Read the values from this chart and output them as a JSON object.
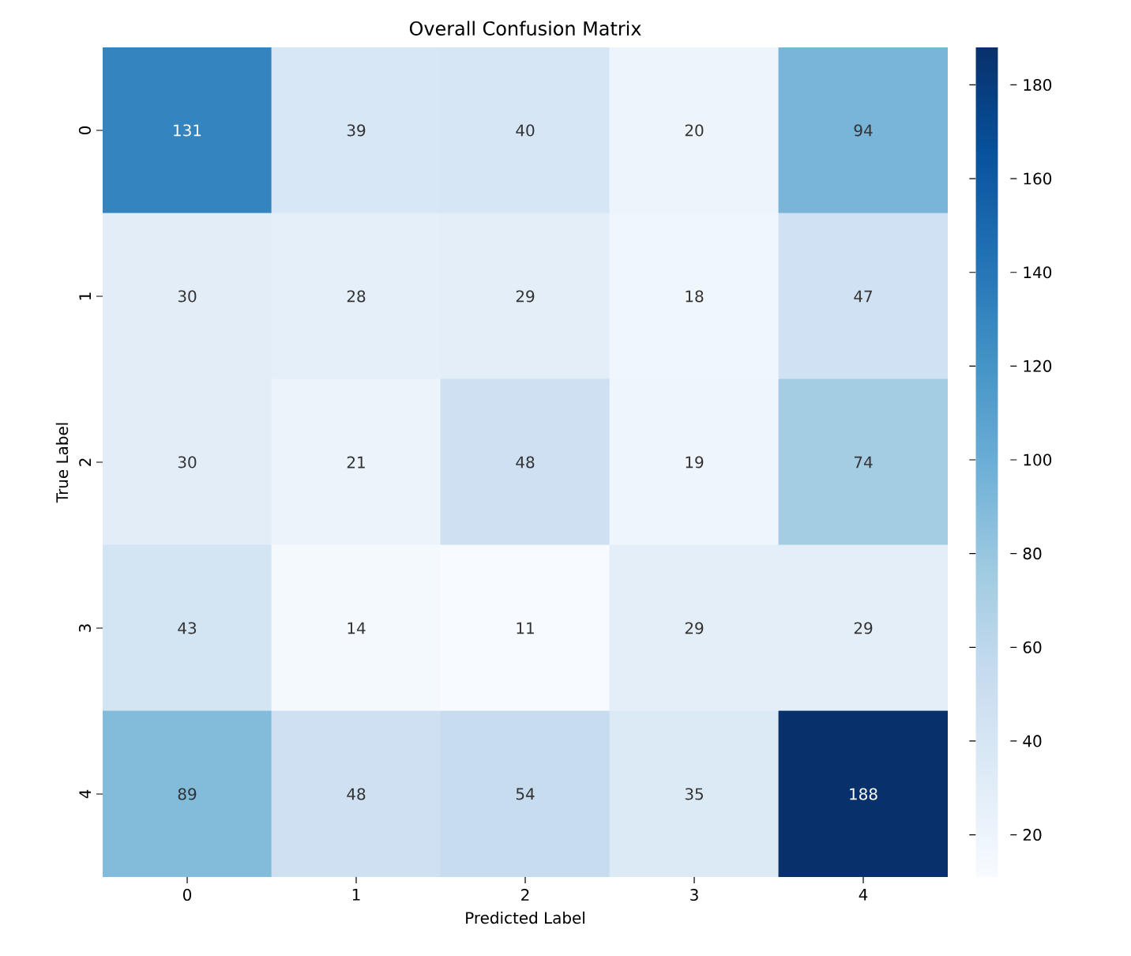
{
  "chart_data": {
    "type": "heatmap",
    "title": "Overall Confusion Matrix",
    "xlabel": "Predicted Label",
    "ylabel": "True Label",
    "categories": [
      "0",
      "1",
      "2",
      "3",
      "4"
    ],
    "y_categories": [
      "0",
      "1",
      "2",
      "3",
      "4"
    ],
    "cells": [
      [
        131,
        39,
        40,
        20,
        94
      ],
      [
        30,
        28,
        29,
        18,
        47
      ],
      [
        30,
        21,
        48,
        19,
        74
      ],
      [
        43,
        14,
        11,
        29,
        29
      ],
      [
        89,
        48,
        54,
        35,
        188
      ]
    ],
    "data_labels": true,
    "clim": [
      11,
      188
    ],
    "cticks": [
      20,
      40,
      60,
      80,
      100,
      120,
      140,
      160,
      180
    ]
  }
}
